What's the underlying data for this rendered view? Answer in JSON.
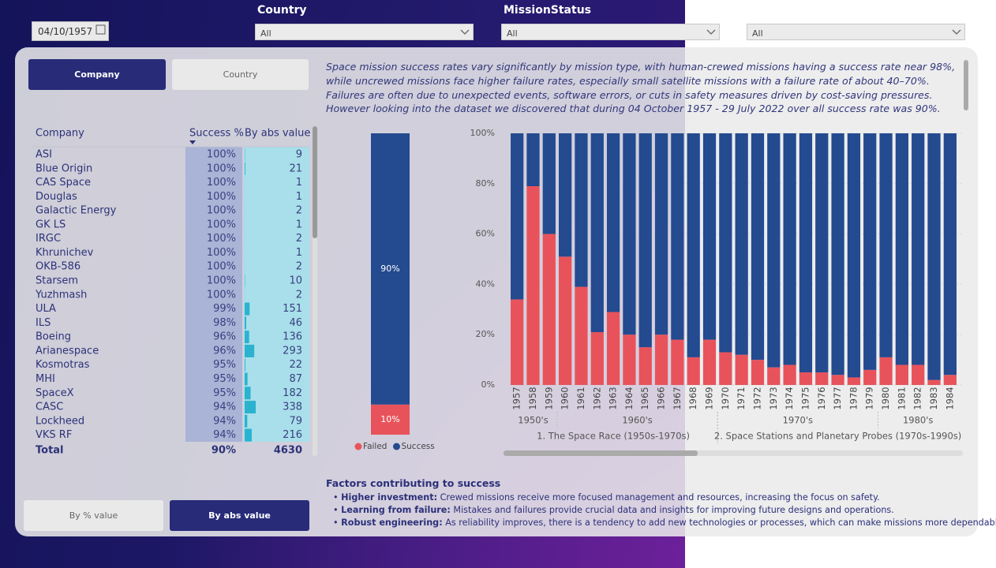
{
  "filters": {
    "date": "04/10/1957",
    "country": {
      "label": "Country",
      "value": "All"
    },
    "mission_status": {
      "label": "MissionStatus",
      "value": "All"
    },
    "extra": {
      "value": "All"
    }
  },
  "view_buttons": [
    "Company",
    "Country"
  ],
  "value_buttons": [
    "By % value",
    "By abs value"
  ],
  "table": {
    "headers": [
      "Company",
      "Success %",
      "By abs value"
    ],
    "rows": [
      [
        "ASI",
        "100%",
        9
      ],
      [
        "Blue Origin",
        "100%",
        21
      ],
      [
        "CAS Space",
        "100%",
        1
      ],
      [
        "Douglas",
        "100%",
        1
      ],
      [
        "Galactic Energy",
        "100%",
        2
      ],
      [
        "GK LS",
        "100%",
        1
      ],
      [
        "IRGC",
        "100%",
        2
      ],
      [
        "Khrunichev",
        "100%",
        1
      ],
      [
        "OKB-586",
        "100%",
        2
      ],
      [
        "Starsem",
        "100%",
        10
      ],
      [
        "Yuzhmash",
        "100%",
        2
      ],
      [
        "ULA",
        "99%",
        151
      ],
      [
        "ILS",
        "98%",
        46
      ],
      [
        "Boeing",
        "96%",
        136
      ],
      [
        "Arianespace",
        "96%",
        293
      ],
      [
        "Kosmotras",
        "95%",
        22
      ],
      [
        "MHI",
        "95%",
        87
      ],
      [
        "SpaceX",
        "95%",
        182
      ],
      [
        "CASC",
        "94%",
        338
      ],
      [
        "Lockheed",
        "94%",
        79
      ],
      [
        "VKS RF",
        "94%",
        216
      ]
    ],
    "total": [
      "Total",
      "90%",
      4630
    ]
  },
  "narrative": "Space mission success rates vary significantly by mission type, with human-crewed missions having a success rate near 98%, while uncrewed missions face higher failure rates, especially small satellite missions with a failure rate of about 40–70%. Failures are often due to unexpected events, software errors, or cuts in safety measures driven by cost-saving pressures. However looking into the dataset we discovered that during 04 October 1957 - 29 July 2022 over all success rate was 90%.",
  "factors": {
    "title": "Factors contributing to success",
    "items": [
      {
        "lead": "Higher investment:",
        "text": "Crewed missions receive more focused management and resources, increasing the focus on safety."
      },
      {
        "lead": "Learning from failure:",
        "text": "Mistakes and failures provide crucial data and insights for improving future designs and operations."
      },
      {
        "lead": "Robust engineering:",
        "text": "As reliability improves, there is a tendency to add new technologies or processes, which can make missions more dependable."
      }
    ]
  },
  "chart_data": [
    {
      "type": "bar",
      "stacked": true,
      "categories": [
        null
      ],
      "ylim": [
        0,
        100
      ],
      "legend": "bottom",
      "series": [
        {
          "name": "Failed",
          "color": "#e8535b",
          "values": [
            10
          ],
          "value_labels": [
            "10%"
          ]
        },
        {
          "name": "Success",
          "color": "#244a8f",
          "values": [
            90
          ],
          "value_labels": [
            "90%"
          ]
        }
      ]
    },
    {
      "type": "bar",
      "stacked": true,
      "grid": true,
      "categories": [
        "1957",
        "1958",
        "1959",
        "1960",
        "1961",
        "1962",
        "1963",
        "1964",
        "1965",
        "1966",
        "1967",
        "1968",
        "1969",
        "1970",
        "1971",
        "1972",
        "1973",
        "1974",
        "1975",
        "1976",
        "1977",
        "1978",
        "1979",
        "1980",
        "1981",
        "1982",
        "1983",
        "1984"
      ],
      "decades": [
        {
          "label": "1950's",
          "count": 3
        },
        {
          "label": "1960's",
          "count": 10
        },
        {
          "label": "1970's",
          "count": 10
        },
        {
          "label": "1980's",
          "count": 5
        }
      ],
      "eras": [
        {
          "label": "1. The Space Race (1950s-1970s)",
          "count": 13
        },
        {
          "label": "2. Space Stations and Planetary Probes (1970s-1990s)",
          "count": 15
        }
      ],
      "ylim": [
        0,
        100
      ],
      "yticks": [
        {
          "value": 0,
          "label": "0%"
        },
        {
          "value": 20,
          "label": "20%"
        },
        {
          "value": 40,
          "label": "40%"
        },
        {
          "value": 60,
          "label": "60%"
        },
        {
          "value": 80,
          "label": "80%"
        },
        {
          "value": 100,
          "label": "100%"
        }
      ],
      "series": [
        {
          "name": "Failed",
          "color": "#e8535b",
          "values": [
            34,
            79,
            60,
            51,
            39,
            21,
            29,
            20,
            15,
            20,
            18,
            11,
            18,
            13,
            12,
            10,
            7,
            8,
            5,
            5,
            4,
            3,
            6,
            11,
            8,
            8,
            2,
            4
          ]
        },
        {
          "name": "Success",
          "color": "#244a8f",
          "values": [
            66,
            21,
            40,
            49,
            61,
            79,
            71,
            80,
            85,
            80,
            82,
            89,
            82,
            87,
            88,
            90,
            93,
            92,
            95,
            95,
            96,
            97,
            94,
            89,
            92,
            92,
            98,
            96
          ]
        }
      ]
    }
  ]
}
